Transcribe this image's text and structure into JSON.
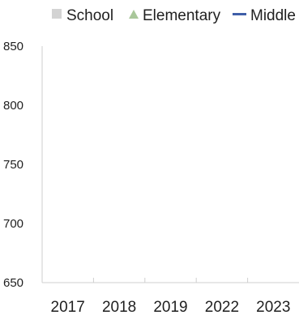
{
  "chart_data": {
    "type": "line",
    "categories": [
      "2017",
      "2018",
      "2019",
      "2022",
      "2023"
    ],
    "ylim": [
      650,
      850
    ],
    "yticks": [
      650,
      700,
      750,
      800,
      850
    ],
    "series": [
      {
        "name": "School",
        "values": [
          null,
          null,
          null,
          null,
          null
        ],
        "color": "#d3d3d3",
        "marker": "square"
      },
      {
        "name": "Elementary",
        "values": [
          null,
          null,
          null,
          null,
          null
        ],
        "color": "#a9c79a",
        "marker": "triangle"
      },
      {
        "name": "Middle",
        "values": [
          null,
          null,
          null,
          null,
          null
        ],
        "color": "#3f5fa8",
        "marker": "line"
      }
    ],
    "grid": false,
    "legend_position": "top"
  }
}
